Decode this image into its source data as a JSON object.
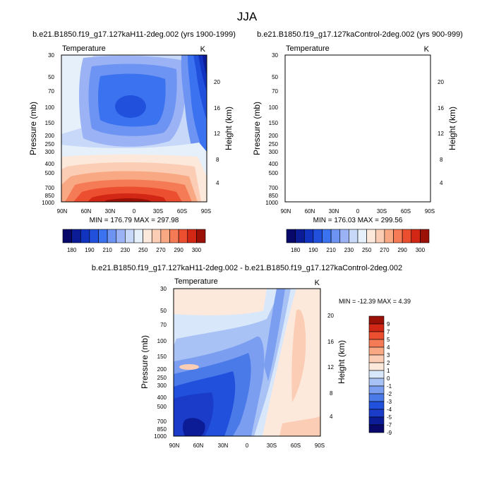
{
  "figure_title": "JJA",
  "colors": {
    "temperature_scale": [
      "#08086b",
      "#0b1c96",
      "#1233bf",
      "#2050dc",
      "#3b72ef",
      "#6d94f2",
      "#9bb3f5",
      "#c7d8f8",
      "#e6f0fb",
      "#fde8dc",
      "#fbcdb4",
      "#f8a882",
      "#f47b56",
      "#ec4f30",
      "#d12714",
      "#9b1108"
    ],
    "difference_scale": [
      "#08086b",
      "#0b1c96",
      "#1a3cc8",
      "#2050dc",
      "#4a7ae8",
      "#7b9ef0",
      "#a9c2f5",
      "#d9e7fa",
      "#fde8dc",
      "#fbcdb4",
      "#f8a882",
      "#f47b56",
      "#ec4f30",
      "#d12714",
      "#9b1108"
    ]
  },
  "chart_data": [
    {
      "type": "contour",
      "title": "b.e21.B1850.f19_g17.127kaH11-2deg.002 (yrs 1900-1999)",
      "left_label": "Temperature",
      "units": "K",
      "xlabel": "",
      "ylabel": "Pressure (mb)",
      "ylabel_right": "Height (km)",
      "x_ticks": [
        "90N",
        "60N",
        "30N",
        "0",
        "30S",
        "60S",
        "90S"
      ],
      "y_ticks": [
        "30",
        "50",
        "70",
        "100",
        "150",
        "200",
        "250",
        "300",
        "400",
        "500",
        "700",
        "850",
        "1000"
      ],
      "y_right_ticks": [
        "20",
        "16",
        "12",
        "8",
        "4"
      ],
      "stats": "MIN = 176.79  MAX = 297.98",
      "colorbar_labels": [
        "180",
        "190",
        "210",
        "230",
        "250",
        "270",
        "290",
        "300"
      ]
    },
    {
      "type": "contour",
      "title": "b.e21.B1850.f19_g17.127kaControl-2deg.002 (yrs 900-999)",
      "left_label": "Temperature",
      "units": "K",
      "xlabel": "",
      "ylabel": "Pressure (mb)",
      "ylabel_right": "Height (km)",
      "x_ticks": [
        "90N",
        "60N",
        "30N",
        "0",
        "30S",
        "60S",
        "90S"
      ],
      "y_ticks": [
        "30",
        "50",
        "70",
        "100",
        "150",
        "200",
        "250",
        "300",
        "400",
        "500",
        "700",
        "850",
        "1000"
      ],
      "y_right_ticks": [
        "20",
        "16",
        "12",
        "8",
        "4"
      ],
      "stats": "MIN = 176.03  MAX = 299.56",
      "colorbar_labels": [
        "180",
        "190",
        "210",
        "230",
        "250",
        "270",
        "290",
        "300"
      ]
    },
    {
      "type": "contour",
      "title": "b.e21.B1850.f19_g17.127kaH11-2deg.002 - b.e21.B1850.f19_g17.127kaControl-2deg.002",
      "left_label": "Temperature",
      "units": "K",
      "xlabel": "",
      "ylabel": "Pressure (mb)",
      "ylabel_right": "Height (km)",
      "x_ticks": [
        "90N",
        "60N",
        "30N",
        "0",
        "30S",
        "60S",
        "90S"
      ],
      "y_ticks": [
        "30",
        "50",
        "70",
        "100",
        "150",
        "200",
        "250",
        "300",
        "400",
        "500",
        "700",
        "850",
        "1000"
      ],
      "y_right_ticks": [
        "20",
        "16",
        "12",
        "8",
        "4"
      ],
      "stats": "MIN = -12.39  MAX =   4.39",
      "colorbar_labels": [
        "9",
        "7",
        "5",
        "4",
        "3",
        "2",
        "1",
        "0",
        "-1",
        "-2",
        "-3",
        "-4",
        "-5",
        "-7",
        "-9"
      ]
    }
  ]
}
